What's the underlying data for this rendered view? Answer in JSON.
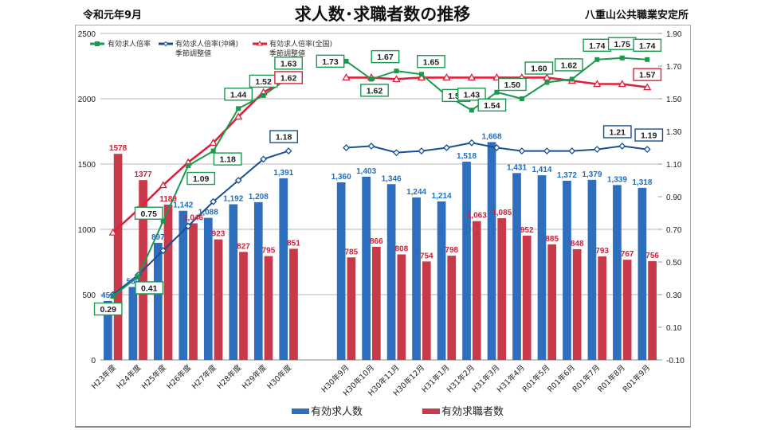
{
  "header": {
    "date": "令和元年9月",
    "title": "求人数･求職者数の推移",
    "office": "八重山公共職業安定所"
  },
  "chart_data": {
    "type": "bar",
    "title": "求人数･求職者数の推移",
    "categories": [
      "H23年度",
      "H24年度",
      "H25年度",
      "H26年度",
      "H27年度",
      "H28年度",
      "H29年度",
      "H30年度",
      "H30年9月",
      "H30年10月",
      "H30年11月",
      "H30年12月",
      "H31年1月",
      "H31年2月",
      "H31年3月",
      "H31年4月",
      "R01年5月",
      "R01年6月",
      "R01年7月",
      "R01年8月",
      "R01年9月"
    ],
    "gap_after_index": 7,
    "left_axis": {
      "min": 0,
      "max": 2500,
      "ticks": [
        "0",
        "500",
        "1000",
        "1500",
        "2000",
        "2500"
      ]
    },
    "right_axis": {
      "min": -0.1,
      "max": 1.9,
      "ticks": [
        "-0.10",
        "0.10",
        "0.30",
        "0.50",
        "0.70",
        "0.90",
        "1.10",
        "1.30",
        "1.50",
        "1.70",
        "1.90"
      ]
    },
    "grid": true,
    "bar_series": [
      {
        "name": "有効求人数",
        "color": "#2e6fbd",
        "label_color": "#1f6fc0",
        "values": [
          452,
          559,
          897,
          1142,
          1088,
          1192,
          1208,
          1391,
          1360,
          1403,
          1346,
          1244,
          1214,
          1518,
          1668,
          1431,
          1414,
          1372,
          1379,
          1339,
          1318
        ],
        "labels": [
          "452",
          "559",
          "897",
          "1,142",
          "1,088",
          "1,192",
          "1,208",
          "1,391",
          "1,360",
          "1,403",
          "1,346",
          "1,244",
          "1,214",
          "1,518",
          "1,668",
          "1,431",
          "1,414",
          "1,372",
          "1,379",
          "1,339",
          "1,318"
        ]
      },
      {
        "name": "有効求職者数",
        "color": "#c8394a",
        "label_color": "#d0213a",
        "values": [
          1578,
          1377,
          1189,
          1046,
          923,
          827,
          795,
          851,
          785,
          866,
          808,
          754,
          798,
          1063,
          1085,
          952,
          885,
          848,
          793,
          767,
          756
        ],
        "labels": [
          "1578",
          "1377",
          "1189",
          "1,046",
          "923",
          "827",
          "795",
          "851",
          "785",
          "866",
          "808",
          "754",
          "798",
          "1,063",
          "1,085",
          "952",
          "885",
          "848",
          "793",
          "767",
          "756"
        ]
      }
    ],
    "line_series": [
      {
        "name": "有効求人倍率",
        "color": "#1a9a4e",
        "marker": "square",
        "values": [
          0.29,
          0.41,
          0.75,
          1.09,
          1.18,
          1.44,
          1.52,
          1.63,
          1.73,
          1.62,
          1.67,
          1.65,
          1.52,
          1.43,
          1.54,
          1.5,
          1.6,
          1.62,
          1.74,
          1.75,
          1.74
        ],
        "labels": [
          "0.29",
          "0.41",
          "0.75",
          "1.09",
          "1.18",
          "1.44",
          "1.52",
          "1.63",
          "1.73",
          "1.62",
          "1.67",
          "1.65",
          "1.52",
          "1.43",
          "1.54",
          "1.50",
          "1.60",
          "1.62",
          "1.74",
          "1.75",
          "1.74"
        ]
      },
      {
        "name": "有効求人倍率(沖縄)季節調整値",
        "color": "#1a4f95",
        "marker": "diamond",
        "values": [
          0.3,
          0.42,
          0.57,
          0.72,
          0.87,
          1.0,
          1.13,
          1.18,
          1.2,
          1.21,
          1.17,
          1.18,
          1.2,
          1.23,
          1.2,
          1.18,
          1.18,
          1.18,
          1.19,
          1.21,
          1.19
        ],
        "labels": {
          "7": "1.18",
          "19": "1.21",
          "20": "1.19"
        }
      },
      {
        "name": "有効求人倍率(全国)季節調整値",
        "color": "#e0203a",
        "marker": "triangle",
        "values": [
          0.68,
          0.82,
          0.97,
          1.11,
          1.23,
          1.39,
          1.54,
          1.62,
          1.63,
          1.63,
          1.62,
          1.63,
          1.63,
          1.63,
          1.63,
          1.63,
          1.63,
          1.61,
          1.59,
          1.59,
          1.57
        ],
        "labels": {
          "7": "1.62",
          "20": "1.57"
        }
      }
    ],
    "legend_top": [
      "有効求人倍率",
      "有効求人倍率(沖縄)",
      "季節調整値",
      "有効求人倍率(全国)",
      "季節調整値"
    ],
    "legend_bottom": [
      "有効求人数",
      "有効求職者数"
    ],
    "legend_placement": "top-left (lines), bottom-center (bars)"
  }
}
